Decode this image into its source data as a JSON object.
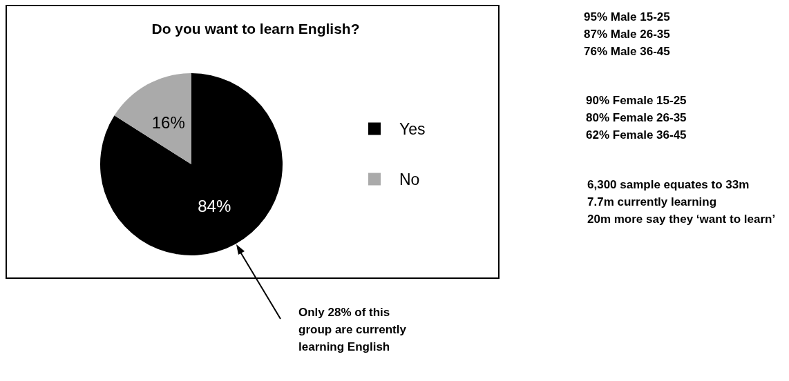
{
  "chart_data": {
    "type": "pie",
    "title": "Do you want to learn English?",
    "categories": [
      "Yes",
      "No"
    ],
    "values": [
      84,
      16
    ],
    "value_labels": [
      "84%",
      "16%"
    ],
    "colors": [
      "#000000",
      "#aaaaaa"
    ],
    "legend": "right",
    "annotations": [
      "95% Male 15-25\n87% Male 26-35\n76% Male 36-45",
      "90% Female 15-25\n80% Female 26-35\n62% Female 36-45",
      "6,300 sample equates to 33m\n7.7m currently learning\n20m more say they ‘want to learn’",
      "Only 28% of this\ngroup are currently\nlearning English"
    ]
  }
}
